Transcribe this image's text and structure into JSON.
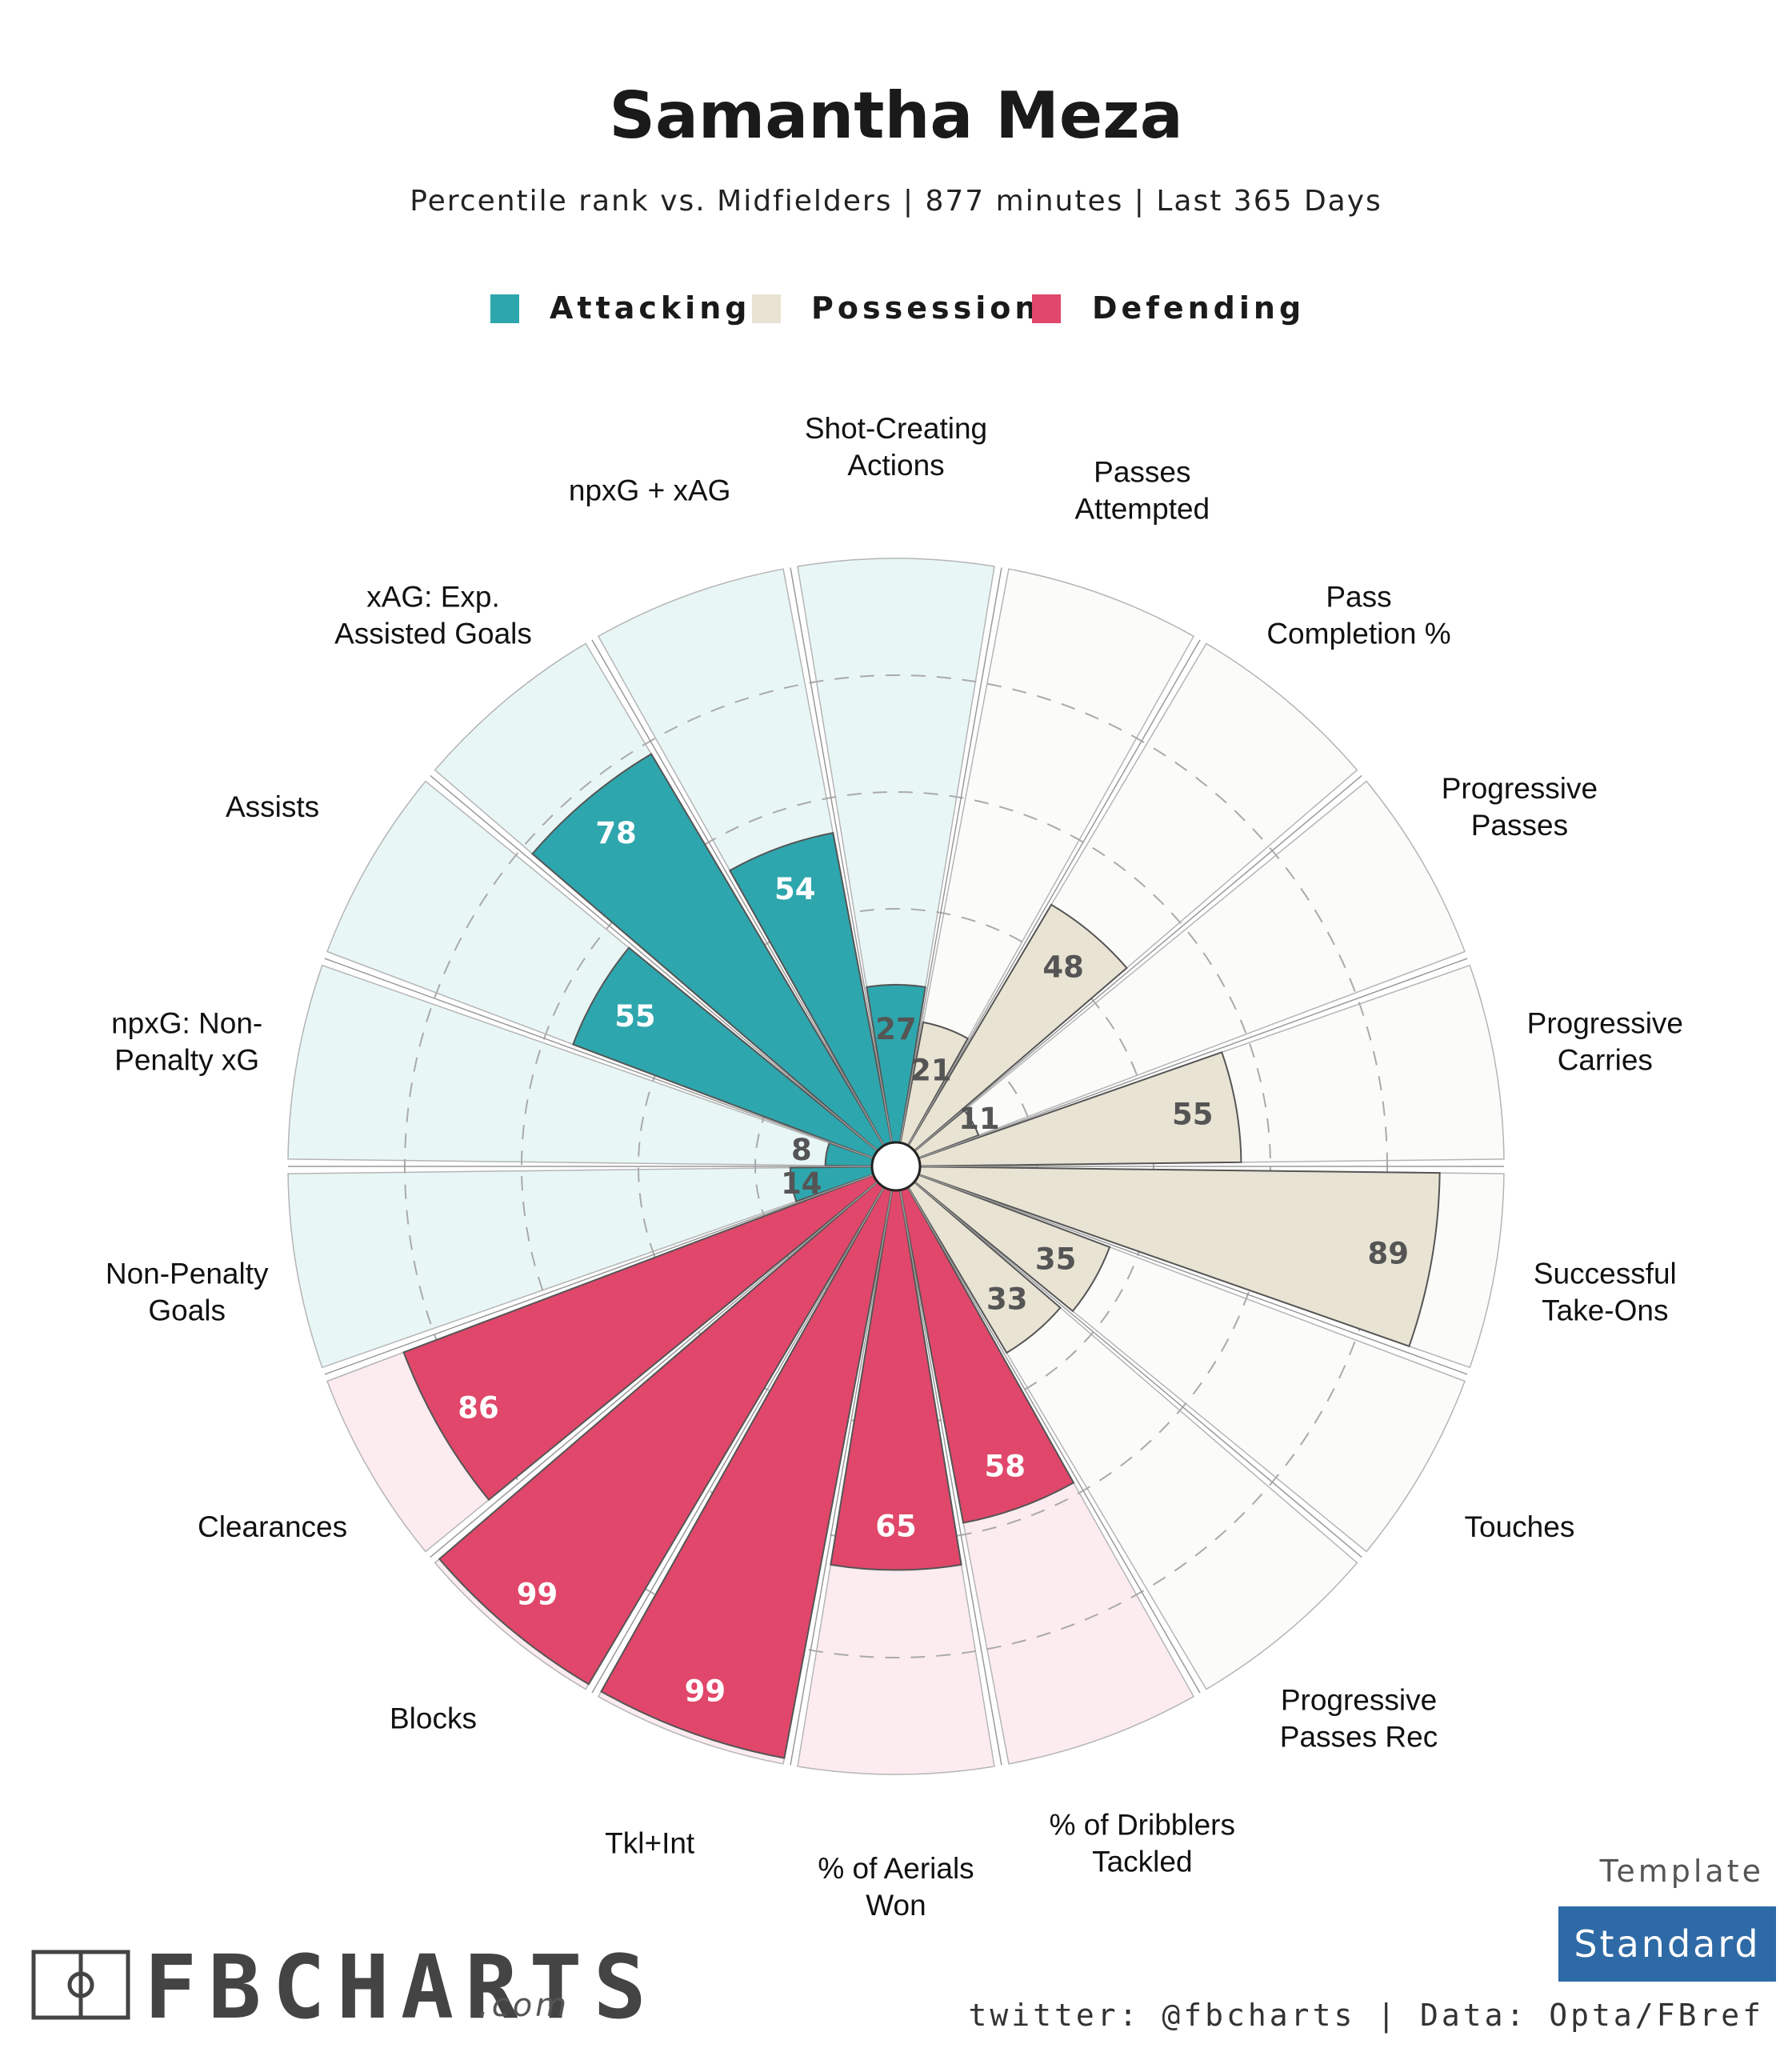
{
  "header": {
    "title": "Samantha Meza",
    "subtitle": "Percentile rank vs. Midfielders | 877 minutes | Last 365 Days"
  },
  "legend": [
    {
      "label": "Attacking",
      "color": "#2ea6ad"
    },
    {
      "label": "Possession",
      "color": "#e8e3d3"
    },
    {
      "label": "Defending",
      "color": "#e0476a"
    }
  ],
  "chart_data": {
    "type": "bar",
    "subtype": "polar-pizza",
    "range": [
      0,
      100
    ],
    "gridlines": [
      20,
      40,
      60,
      80
    ],
    "categories": [
      {
        "label": [
          "Shot-Creating",
          "Actions"
        ],
        "value": 27,
        "group": "Attacking"
      },
      {
        "label": [
          "Passes",
          "Attempted"
        ],
        "value": 21,
        "group": "Possession"
      },
      {
        "label": [
          "Pass",
          "Completion %"
        ],
        "value": 48,
        "group": "Possession"
      },
      {
        "label": [
          "Progressive",
          "Passes"
        ],
        "value": 11,
        "group": "Possession"
      },
      {
        "label": [
          "Progressive",
          "Carries"
        ],
        "value": 55,
        "group": "Possession"
      },
      {
        "label": [
          "Successful",
          "Take-Ons"
        ],
        "value": 89,
        "group": "Possession"
      },
      {
        "label": [
          "Touches"
        ],
        "value": 35,
        "group": "Possession"
      },
      {
        "label": [
          "Progressive",
          "Passes Rec"
        ],
        "value": 33,
        "group": "Possession"
      },
      {
        "label": [
          "% of Dribblers",
          "Tackled"
        ],
        "value": 58,
        "group": "Defending"
      },
      {
        "label": [
          "% of Aerials",
          "Won"
        ],
        "value": 65,
        "group": "Defending"
      },
      {
        "label": [
          "Tkl+Int"
        ],
        "value": 99,
        "group": "Defending"
      },
      {
        "label": [
          "Blocks"
        ],
        "value": 99,
        "group": "Defending"
      },
      {
        "label": [
          "Clearances"
        ],
        "value": 86,
        "group": "Defending"
      },
      {
        "label": [
          "Non-Penalty",
          "Goals"
        ],
        "value": 14,
        "group": "Attacking"
      },
      {
        "label": [
          "npxG: Non-",
          "Penalty xG"
        ],
        "value": 8,
        "group": "Attacking"
      },
      {
        "label": [
          "Assists"
        ],
        "value": 55,
        "group": "Attacking"
      },
      {
        "label": [
          "xAG: Exp.",
          "Assisted Goals"
        ],
        "value": 78,
        "group": "Attacking"
      },
      {
        "label": [
          "npxG + xAG"
        ],
        "value": 54,
        "group": "Attacking"
      }
    ],
    "group_colors": {
      "Attacking": {
        "bar": "#2ea6ad",
        "bg": "#e9f6f6",
        "text": "#ffffff",
        "text_low": "#555555"
      },
      "Possession": {
        "bar": "#e8e3d3",
        "bg": "#fbfbf9",
        "text": "#555555",
        "text_low": "#555555"
      },
      "Defending": {
        "bar": "#e0476a",
        "bg": "#fcecef",
        "text": "#ffffff",
        "text_low": "#555555"
      }
    }
  },
  "footer": {
    "logo": "FBCHARTS",
    "logo_suffix": ".com",
    "credit": "twitter: @fbcharts | Data: Opta/FBref",
    "template_label": "Template",
    "template_value": "Standard",
    "template_color": "#2e6aa6"
  }
}
